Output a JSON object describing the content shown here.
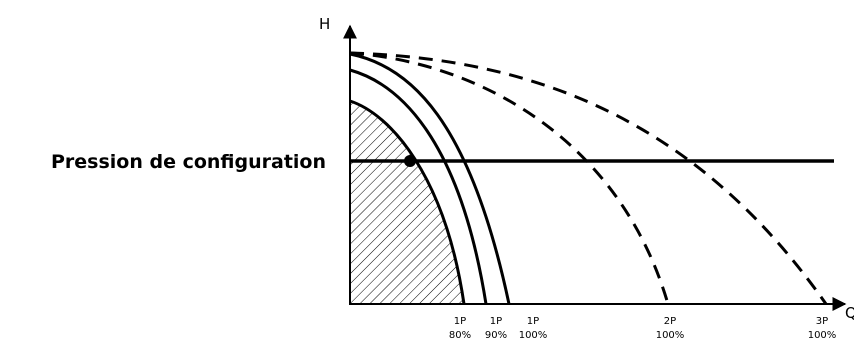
{
  "axes": {
    "y_label": "H",
    "x_label": "Q"
  },
  "setpoint": {
    "label": "Pression de configuration"
  },
  "curves": [
    {
      "pumps": "1P",
      "speed": "80%",
      "style": "solid",
      "shaded_area": true
    },
    {
      "pumps": "1P",
      "speed": "90%",
      "style": "solid"
    },
    {
      "pumps": "1P",
      "speed": "100%",
      "style": "solid"
    },
    {
      "pumps": "2P",
      "speed": "100%",
      "style": "dashed"
    },
    {
      "pumps": "3P",
      "speed": "100%",
      "style": "dashed"
    }
  ],
  "operating_point": {
    "on_curve": "1P 80%"
  },
  "colors": {
    "line": "#000000",
    "background": "#ffffff"
  }
}
